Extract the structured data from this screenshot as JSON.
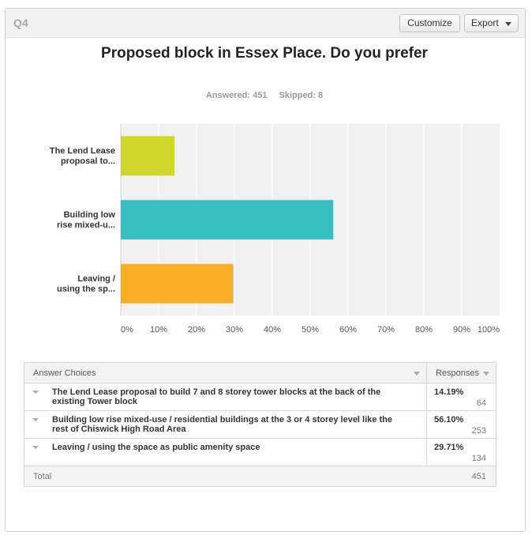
{
  "header": {
    "question": "Q4",
    "customize_label": "Customize",
    "export_label": "Export"
  },
  "stats": {
    "answered": "Answered: 451",
    "skipped": "Skipped: 8"
  },
  "chart_data": {
    "type": "bar",
    "orientation": "horizontal",
    "title": "Proposed block in Essex Place. Do you prefer",
    "categories": [
      "The Lend Lease proposal to...",
      "Building low rise mixed-u...",
      "Leaving / using the sp..."
    ],
    "category_lines": [
      [
        "The Lend Lease",
        "proposal to..."
      ],
      [
        "Building low",
        "rise mixed-u..."
      ],
      [
        "Leaving /",
        "using the sp..."
      ]
    ],
    "values": [
      14.19,
      56.1,
      29.71
    ],
    "colors": [
      "#d0d62b",
      "#35bfc0",
      "#f7ae24"
    ],
    "xlim": [
      0,
      100
    ],
    "xticks": [
      "0%",
      "10%",
      "20%",
      "30%",
      "40%",
      "50%",
      "60%",
      "70%",
      "80%",
      "90%",
      "100%"
    ],
    "grid": true,
    "background": "#f1f1f1",
    "gridline_color": "#ffffff"
  },
  "table": {
    "col_choices": "Answer Choices",
    "col_responses": "Responses",
    "rows": [
      {
        "label": "The Lend Lease proposal to build 7 and 8 storey tower blocks at the back of the existing Tower block",
        "pct": "14.19%",
        "count": "64"
      },
      {
        "label": "Building low rise mixed-use / residential buildings at the 3 or 4 storey level like the rest of Chiswick High Road Area",
        "pct": "56.10%",
        "count": "253"
      },
      {
        "label": "Leaving / using the space as public amenity space",
        "pct": "29.71%",
        "count": "134"
      }
    ],
    "total_label": "Total",
    "total_value": "451"
  }
}
